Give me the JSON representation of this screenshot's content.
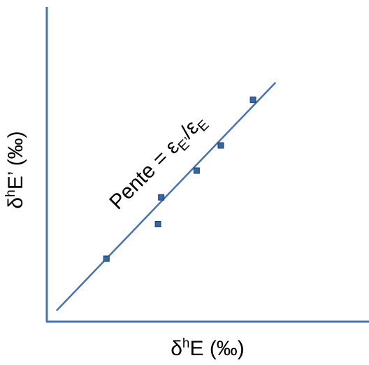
{
  "chart_data": {
    "type": "scatter",
    "title": "",
    "xlabel": {
      "base": "δ",
      "sup": "h",
      "rest": "E (‰)"
    },
    "ylabel": {
      "base": "δ",
      "sup": "h",
      "rest": "E’ (‰)"
    },
    "annotation": {
      "main": "Pente = ε",
      "sub1": "E’",
      "mid": "/ε",
      "sub2": "E"
    },
    "grid": false,
    "legend": "none",
    "xlim": [
      0,
      100
    ],
    "ylim": [
      0,
      100
    ],
    "points": [
      {
        "x": 18.5,
        "y": 20
      },
      {
        "x": 34.5,
        "y": 31
      },
      {
        "x": 35.5,
        "y": 39.5
      },
      {
        "x": 46.5,
        "y": 48
      },
      {
        "x": 54,
        "y": 56
      },
      {
        "x": 64,
        "y": 70.5
      }
    ],
    "fit_line": {
      "x": [
        3,
        71
      ],
      "y": [
        3.5,
        76
      ]
    },
    "colors": {
      "axis": "#4a72b0",
      "line": "#4a72b0",
      "marker": "#3465a4",
      "marker_edge": "#1f3f73"
    }
  }
}
